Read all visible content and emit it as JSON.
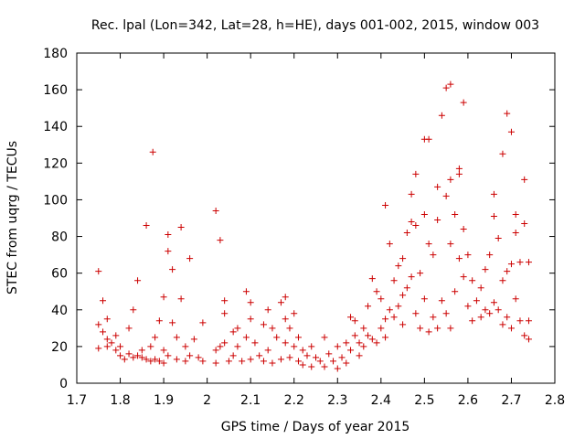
{
  "chart_data": {
    "type": "scatter",
    "title": "Rec. lpal (Lon=342, Lat=28, h=HE), days 001-002, 2015, window 003",
    "xlabel": "GPS time / Days of year 2015",
    "ylabel": "STEC from uqrg / TECUs",
    "xlim": [
      1.7,
      2.8
    ],
    "ylim": [
      0,
      180
    ],
    "xticks": [
      "1.7",
      "1.8",
      "1.9",
      "2",
      "2.1",
      "2.2",
      "2.3",
      "2.4",
      "2.5",
      "2.6",
      "2.7",
      "2.8"
    ],
    "yticks": [
      "0",
      "20",
      "40",
      "60",
      "80",
      "100",
      "120",
      "140",
      "160",
      "180"
    ],
    "grid": false,
    "legend": "none",
    "marker": "plus",
    "color": "#cc0000",
    "series": [
      {
        "points": [
          [
            1.75,
            61
          ],
          [
            1.75,
            32
          ],
          [
            1.75,
            19
          ],
          [
            1.76,
            45
          ],
          [
            1.76,
            28
          ],
          [
            1.77,
            35
          ],
          [
            1.77,
            24
          ],
          [
            1.77,
            20
          ],
          [
            1.78,
            22
          ],
          [
            1.79,
            26
          ],
          [
            1.79,
            18
          ],
          [
            1.8,
            20
          ],
          [
            1.8,
            15
          ],
          [
            1.81,
            13
          ],
          [
            1.82,
            30
          ],
          [
            1.82,
            16
          ],
          [
            1.83,
            40
          ],
          [
            1.83,
            14
          ],
          [
            1.84,
            56
          ],
          [
            1.84,
            15
          ],
          [
            1.85,
            18
          ],
          [
            1.85,
            14
          ],
          [
            1.86,
            86
          ],
          [
            1.86,
            13
          ],
          [
            1.87,
            20
          ],
          [
            1.87,
            12
          ],
          [
            1.875,
            126
          ],
          [
            1.88,
            25
          ],
          [
            1.88,
            13
          ],
          [
            1.89,
            34
          ],
          [
            1.89,
            12
          ],
          [
            1.9,
            47
          ],
          [
            1.9,
            18
          ],
          [
            1.9,
            11
          ],
          [
            1.91,
            81
          ],
          [
            1.91,
            72
          ],
          [
            1.91,
            15
          ],
          [
            1.92,
            62
          ],
          [
            1.92,
            33
          ],
          [
            1.93,
            25
          ],
          [
            1.93,
            13
          ],
          [
            1.94,
            85
          ],
          [
            1.94,
            46
          ],
          [
            1.95,
            20
          ],
          [
            1.95,
            12
          ],
          [
            1.96,
            68
          ],
          [
            1.96,
            15
          ],
          [
            1.97,
            24
          ],
          [
            1.98,
            14
          ],
          [
            1.99,
            33
          ],
          [
            1.99,
            12
          ],
          [
            2.02,
            94
          ],
          [
            2.02,
            18
          ],
          [
            2.02,
            11
          ],
          [
            2.03,
            78
          ],
          [
            2.03,
            20
          ],
          [
            2.04,
            45
          ],
          [
            2.04,
            38
          ],
          [
            2.04,
            22
          ],
          [
            2.05,
            12
          ],
          [
            2.06,
            28
          ],
          [
            2.06,
            15
          ],
          [
            2.07,
            30
          ],
          [
            2.07,
            20
          ],
          [
            2.08,
            12
          ],
          [
            2.09,
            50
          ],
          [
            2.09,
            25
          ],
          [
            2.1,
            44
          ],
          [
            2.1,
            35
          ],
          [
            2.1,
            13
          ],
          [
            2.11,
            22
          ],
          [
            2.12,
            15
          ],
          [
            2.13,
            32
          ],
          [
            2.13,
            12
          ],
          [
            2.14,
            40
          ],
          [
            2.14,
            18
          ],
          [
            2.15,
            30
          ],
          [
            2.15,
            11
          ],
          [
            2.16,
            25
          ],
          [
            2.17,
            44
          ],
          [
            2.17,
            13
          ],
          [
            2.18,
            47
          ],
          [
            2.18,
            35
          ],
          [
            2.18,
            22
          ],
          [
            2.19,
            30
          ],
          [
            2.19,
            14
          ],
          [
            2.2,
            38
          ],
          [
            2.2,
            20
          ],
          [
            2.21,
            25
          ],
          [
            2.21,
            12
          ],
          [
            2.22,
            18
          ],
          [
            2.22,
            10
          ],
          [
            2.23,
            15
          ],
          [
            2.24,
            20
          ],
          [
            2.24,
            9
          ],
          [
            2.25,
            14
          ],
          [
            2.26,
            12
          ],
          [
            2.27,
            25
          ],
          [
            2.27,
            9
          ],
          [
            2.28,
            16
          ],
          [
            2.29,
            12
          ],
          [
            2.3,
            20
          ],
          [
            2.3,
            8
          ],
          [
            2.31,
            14
          ],
          [
            2.32,
            22
          ],
          [
            2.32,
            11
          ],
          [
            2.33,
            36
          ],
          [
            2.33,
            18
          ],
          [
            2.34,
            34
          ],
          [
            2.34,
            26
          ],
          [
            2.35,
            22
          ],
          [
            2.35,
            15
          ],
          [
            2.36,
            30
          ],
          [
            2.36,
            20
          ],
          [
            2.37,
            42
          ],
          [
            2.37,
            26
          ],
          [
            2.38,
            57
          ],
          [
            2.38,
            24
          ],
          [
            2.39,
            50
          ],
          [
            2.39,
            22
          ],
          [
            2.4,
            46
          ],
          [
            2.4,
            30
          ],
          [
            2.41,
            97
          ],
          [
            2.41,
            35
          ],
          [
            2.41,
            25
          ],
          [
            2.42,
            76
          ],
          [
            2.42,
            40
          ],
          [
            2.43,
            56
          ],
          [
            2.43,
            36
          ],
          [
            2.44,
            64
          ],
          [
            2.44,
            42
          ],
          [
            2.45,
            68
          ],
          [
            2.45,
            48
          ],
          [
            2.45,
            32
          ],
          [
            2.46,
            82
          ],
          [
            2.46,
            52
          ],
          [
            2.47,
            103
          ],
          [
            2.47,
            88
          ],
          [
            2.47,
            58
          ],
          [
            2.48,
            114
          ],
          [
            2.48,
            86
          ],
          [
            2.48,
            38
          ],
          [
            2.49,
            60
          ],
          [
            2.49,
            30
          ],
          [
            2.5,
            133
          ],
          [
            2.5,
            92
          ],
          [
            2.5,
            46
          ],
          [
            2.51,
            133
          ],
          [
            2.51,
            76
          ],
          [
            2.51,
            28
          ],
          [
            2.52,
            70
          ],
          [
            2.52,
            36
          ],
          [
            2.53,
            107
          ],
          [
            2.53,
            89
          ],
          [
            2.53,
            30
          ],
          [
            2.54,
            146
          ],
          [
            2.54,
            45
          ],
          [
            2.55,
            161
          ],
          [
            2.55,
            102
          ],
          [
            2.55,
            38
          ],
          [
            2.56,
            163
          ],
          [
            2.56,
            111
          ],
          [
            2.56,
            76
          ],
          [
            2.56,
            30
          ],
          [
            2.57,
            92
          ],
          [
            2.57,
            50
          ],
          [
            2.58,
            117
          ],
          [
            2.58,
            114
          ],
          [
            2.58,
            68
          ],
          [
            2.59,
            153
          ],
          [
            2.59,
            84
          ],
          [
            2.59,
            58
          ],
          [
            2.6,
            70
          ],
          [
            2.6,
            42
          ],
          [
            2.61,
            56
          ],
          [
            2.61,
            34
          ],
          [
            2.62,
            45
          ],
          [
            2.63,
            52
          ],
          [
            2.63,
            36
          ],
          [
            2.64,
            62
          ],
          [
            2.64,
            40
          ],
          [
            2.65,
            70
          ],
          [
            2.65,
            38
          ],
          [
            2.66,
            103
          ],
          [
            2.66,
            91
          ],
          [
            2.66,
            44
          ],
          [
            2.67,
            79
          ],
          [
            2.67,
            40
          ],
          [
            2.68,
            125
          ],
          [
            2.68,
            56
          ],
          [
            2.68,
            32
          ],
          [
            2.69,
            147
          ],
          [
            2.69,
            61
          ],
          [
            2.69,
            36
          ],
          [
            2.7,
            137
          ],
          [
            2.7,
            65
          ],
          [
            2.7,
            30
          ],
          [
            2.71,
            92
          ],
          [
            2.71,
            82
          ],
          [
            2.71,
            46
          ],
          [
            2.72,
            66
          ],
          [
            2.72,
            34
          ],
          [
            2.73,
            111
          ],
          [
            2.73,
            87
          ],
          [
            2.73,
            26
          ],
          [
            2.74,
            66
          ],
          [
            2.74,
            34
          ],
          [
            2.74,
            24
          ]
        ]
      }
    ]
  }
}
